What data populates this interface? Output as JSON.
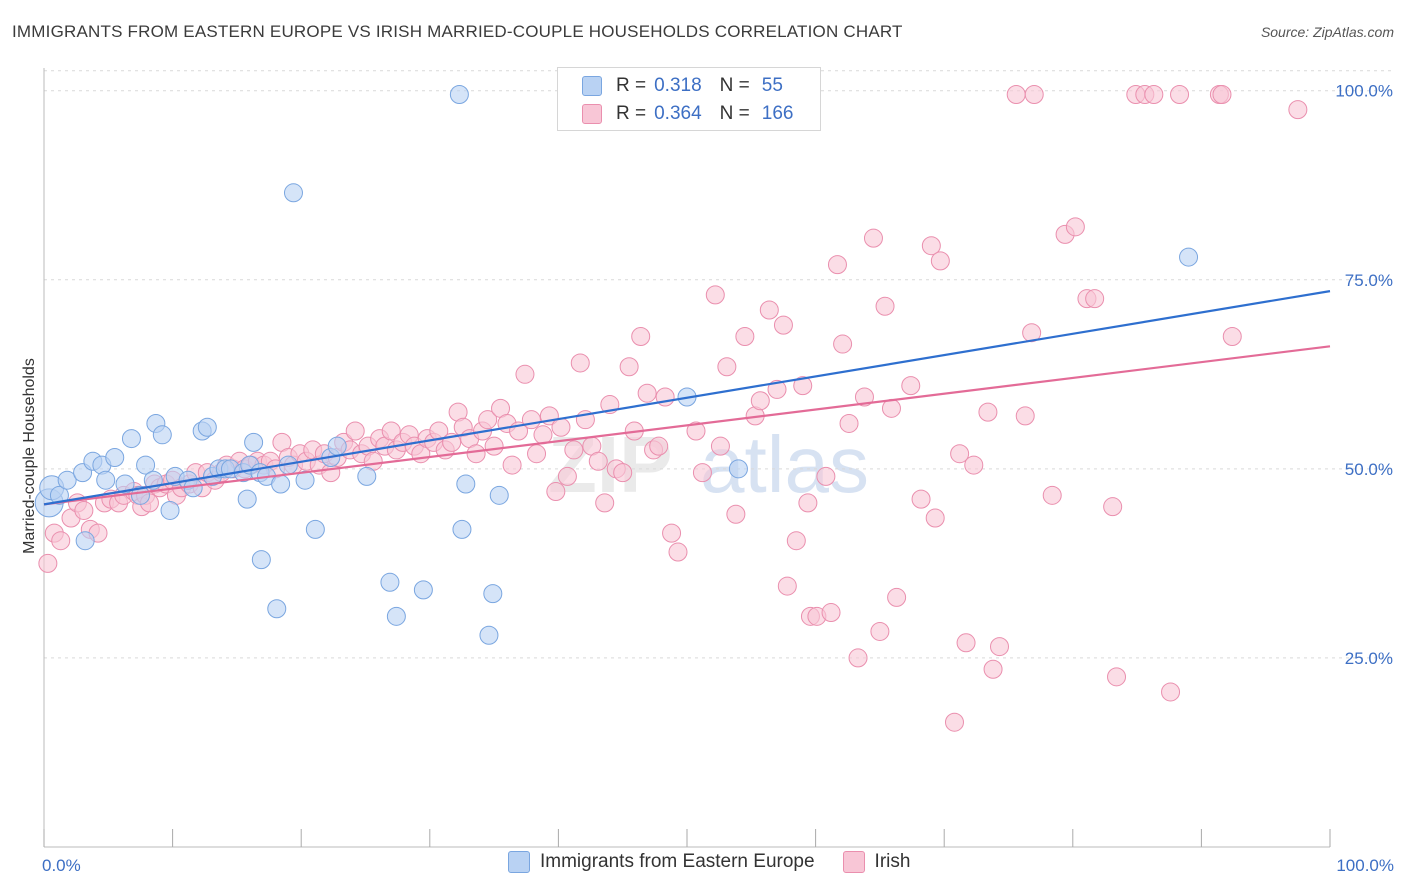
{
  "header": {
    "title": "IMMIGRANTS FROM EASTERN EUROPE VS IRISH MARRIED-COUPLE HOUSEHOLDS CORRELATION CHART",
    "source": "Source: ZipAtlas.com"
  },
  "watermark": {
    "zip": "ZIP",
    "atlas": "atlas"
  },
  "legend": {
    "rows": [
      {
        "r_label": "R =",
        "r_value": "0.318",
        "n_label": "N =",
        "n_value": "55"
      },
      {
        "r_label": "R =",
        "r_value": "0.364",
        "n_label": "N =",
        "n_value": "166"
      }
    ]
  },
  "bottom_legend": {
    "items": [
      "Immigrants from Eastern Europe",
      "Irish"
    ]
  },
  "colors": {
    "blue_fill": "#b9d2f3",
    "blue_stroke": "#7aa6e0",
    "blue_line": "#2e6fcf",
    "pink_fill": "#f8c6d6",
    "pink_stroke": "#ea8fae",
    "pink_line": "#e36b97",
    "tick_label": "#3d6fc4",
    "grid": "#d9d9d9"
  },
  "chart_data": {
    "type": "scatter",
    "title": "IMMIGRANTS FROM EASTERN EUROPE VS IRISH MARRIED-COUPLE HOUSEHOLDS CORRELATION CHART",
    "xlabel": "",
    "ylabel": "Married-couple Households",
    "xlim": [
      0,
      100
    ],
    "ylim": [
      0,
      103
    ],
    "x_tick_labels": [
      "0.0%",
      "100.0%"
    ],
    "y_ticks": [
      25,
      50,
      75,
      100
    ],
    "y_tick_labels": [
      "25.0%",
      "50.0%",
      "75.0%",
      "100.0%"
    ],
    "grid": true,
    "legend_position": "top-center",
    "series": [
      {
        "name": "Immigrants from Eastern Europe",
        "color": "blue",
        "trend": {
          "x": [
            0,
            100
          ],
          "y": [
            45.3,
            73.5
          ]
        },
        "points": [
          [
            0.4,
            45.5,
            14
          ],
          [
            0.6,
            47.5,
            12
          ],
          [
            1.2,
            46.5,
            9
          ],
          [
            1.8,
            48.5,
            9
          ],
          [
            3.0,
            49.5,
            9
          ],
          [
            3.2,
            40.5,
            9
          ],
          [
            3.8,
            51.0,
            9
          ],
          [
            4.5,
            50.5,
            9
          ],
          [
            4.8,
            48.5,
            9
          ],
          [
            5.5,
            51.5,
            9
          ],
          [
            6.3,
            48.0,
            9
          ],
          [
            6.8,
            54.0,
            9
          ],
          [
            7.5,
            46.5,
            9
          ],
          [
            7.9,
            50.5,
            9
          ],
          [
            8.5,
            48.5,
            9
          ],
          [
            8.7,
            56.0,
            9
          ],
          [
            9.2,
            54.5,
            9
          ],
          [
            9.8,
            44.5,
            9
          ],
          [
            10.2,
            49.0,
            9
          ],
          [
            11.2,
            48.5,
            9
          ],
          [
            11.6,
            47.5,
            9
          ],
          [
            12.3,
            55.0,
            9
          ],
          [
            12.7,
            55.5,
            9
          ],
          [
            13.1,
            49.0,
            9
          ],
          [
            13.6,
            50.0,
            9
          ],
          [
            14.1,
            50.0,
            9
          ],
          [
            14.5,
            50.0,
            9
          ],
          [
            15.5,
            49.5,
            9
          ],
          [
            15.8,
            46.0,
            9
          ],
          [
            16.0,
            50.5,
            9
          ],
          [
            16.3,
            53.5,
            9
          ],
          [
            16.8,
            49.5,
            9
          ],
          [
            16.9,
            38.0,
            9
          ],
          [
            17.3,
            49.0,
            9
          ],
          [
            18.1,
            31.5,
            9
          ],
          [
            18.4,
            48.0,
            9
          ],
          [
            19.0,
            50.5,
            9
          ],
          [
            19.4,
            86.5,
            9
          ],
          [
            20.3,
            48.5,
            9
          ],
          [
            21.1,
            42.0,
            9
          ],
          [
            22.3,
            51.5,
            9
          ],
          [
            22.8,
            53.0,
            9
          ],
          [
            25.1,
            49.0,
            9
          ],
          [
            26.9,
            35.0,
            9
          ],
          [
            27.4,
            30.5,
            9
          ],
          [
            29.5,
            34.0,
            9
          ],
          [
            32.3,
            99.5,
            9
          ],
          [
            32.5,
            42.0,
            9
          ],
          [
            32.8,
            48.0,
            9
          ],
          [
            34.6,
            28.0,
            9
          ],
          [
            34.9,
            33.5,
            9
          ],
          [
            35.4,
            46.5,
            9
          ],
          [
            50.0,
            59.5,
            9
          ],
          [
            54.0,
            50.0,
            9
          ],
          [
            89.0,
            78.0,
            9
          ]
        ]
      },
      {
        "name": "Irish",
        "color": "pink",
        "trend": {
          "x": [
            0,
            100
          ],
          "y": [
            45.3,
            66.2
          ]
        },
        "points": [
          [
            0.3,
            37.5,
            9
          ],
          [
            0.8,
            41.5,
            9
          ],
          [
            1.3,
            40.5,
            9
          ],
          [
            2.1,
            43.5,
            9
          ],
          [
            2.6,
            45.5,
            9
          ],
          [
            3.1,
            44.5,
            9
          ],
          [
            3.6,
            42.0,
            9
          ],
          [
            4.2,
            41.5,
            9
          ],
          [
            4.7,
            45.5,
            9
          ],
          [
            5.2,
            46.0,
            9
          ],
          [
            5.8,
            45.5,
            9
          ],
          [
            6.2,
            46.5,
            9
          ],
          [
            7.0,
            47.0,
            9
          ],
          [
            7.3,
            46.5,
            9
          ],
          [
            7.6,
            45.0,
            9
          ],
          [
            7.9,
            46.5,
            9
          ],
          [
            8.2,
            45.5,
            9
          ],
          [
            8.6,
            48.0,
            9
          ],
          [
            9.0,
            47.5,
            9
          ],
          [
            9.5,
            48.0,
            9
          ],
          [
            10.0,
            48.5,
            9
          ],
          [
            10.3,
            46.5,
            9
          ],
          [
            10.7,
            47.5,
            9
          ],
          [
            11.3,
            48.0,
            9
          ],
          [
            11.8,
            49.5,
            9
          ],
          [
            12.3,
            47.5,
            9
          ],
          [
            12.7,
            49.5,
            9
          ],
          [
            13.3,
            48.5,
            9
          ],
          [
            13.8,
            49.5,
            9
          ],
          [
            14.2,
            50.5,
            9
          ],
          [
            14.7,
            50.0,
            9
          ],
          [
            15.2,
            51.0,
            9
          ],
          [
            15.6,
            50.0,
            9
          ],
          [
            16.1,
            50.5,
            9
          ],
          [
            16.6,
            51.0,
            9
          ],
          [
            17.1,
            50.5,
            9
          ],
          [
            17.6,
            51.0,
            9
          ],
          [
            18.0,
            50.0,
            9
          ],
          [
            18.5,
            53.5,
            9
          ],
          [
            19.0,
            51.5,
            9
          ],
          [
            19.4,
            50.5,
            9
          ],
          [
            19.9,
            52.0,
            9
          ],
          [
            20.4,
            51.0,
            9
          ],
          [
            20.9,
            52.5,
            9
          ],
          [
            21.4,
            50.5,
            9
          ],
          [
            21.8,
            52.0,
            9
          ],
          [
            22.3,
            49.5,
            9
          ],
          [
            22.8,
            51.5,
            9
          ],
          [
            23.3,
            53.5,
            9
          ],
          [
            23.8,
            52.5,
            9
          ],
          [
            24.2,
            55.0,
            9
          ],
          [
            24.7,
            52.0,
            9
          ],
          [
            25.2,
            53.0,
            9
          ],
          [
            25.6,
            51.0,
            9
          ],
          [
            26.1,
            54.0,
            9
          ],
          [
            26.5,
            53.0,
            9
          ],
          [
            27.0,
            55.0,
            9
          ],
          [
            27.4,
            52.5,
            9
          ],
          [
            27.9,
            53.5,
            9
          ],
          [
            28.4,
            54.5,
            9
          ],
          [
            28.8,
            53.0,
            9
          ],
          [
            29.3,
            52.0,
            9
          ],
          [
            29.8,
            54.0,
            9
          ],
          [
            30.3,
            53.5,
            9
          ],
          [
            30.7,
            55.0,
            9
          ],
          [
            31.2,
            52.5,
            9
          ],
          [
            31.7,
            53.5,
            9
          ],
          [
            32.2,
            57.5,
            9
          ],
          [
            32.6,
            55.5,
            9
          ],
          [
            33.1,
            54.0,
            9
          ],
          [
            33.6,
            52.0,
            9
          ],
          [
            34.1,
            55.0,
            9
          ],
          [
            34.5,
            56.5,
            9
          ],
          [
            35.0,
            53.0,
            9
          ],
          [
            35.5,
            58.0,
            9
          ],
          [
            36.0,
            56.0,
            9
          ],
          [
            36.4,
            50.5,
            9
          ],
          [
            36.9,
            55.0,
            9
          ],
          [
            37.4,
            62.5,
            9
          ],
          [
            37.9,
            56.5,
            9
          ],
          [
            38.3,
            52.0,
            9
          ],
          [
            38.8,
            54.5,
            9
          ],
          [
            39.3,
            57.0,
            9
          ],
          [
            39.8,
            47.0,
            9
          ],
          [
            40.2,
            55.5,
            9
          ],
          [
            40.7,
            49.0,
            9
          ],
          [
            41.2,
            52.5,
            9
          ],
          [
            41.7,
            64.0,
            9
          ],
          [
            42.1,
            56.5,
            9
          ],
          [
            42.6,
            53.0,
            9
          ],
          [
            43.1,
            51.0,
            9
          ],
          [
            43.6,
            45.5,
            9
          ],
          [
            44.0,
            58.5,
            9
          ],
          [
            44.5,
            50.0,
            9
          ],
          [
            45.0,
            49.5,
            9
          ],
          [
            45.5,
            63.5,
            9
          ],
          [
            45.9,
            55.0,
            9
          ],
          [
            46.4,
            67.5,
            9
          ],
          [
            46.9,
            60.0,
            9
          ],
          [
            47.4,
            52.5,
            9
          ],
          [
            47.8,
            53.0,
            9
          ],
          [
            48.3,
            59.5,
            9
          ],
          [
            48.8,
            41.5,
            9
          ],
          [
            49.3,
            39.0,
            9
          ],
          [
            50.7,
            55.0,
            9
          ],
          [
            51.2,
            49.5,
            9
          ],
          [
            52.2,
            73.0,
            9
          ],
          [
            52.6,
            53.0,
            9
          ],
          [
            53.1,
            63.5,
            9
          ],
          [
            53.8,
            44.0,
            9
          ],
          [
            54.5,
            67.5,
            9
          ],
          [
            55.3,
            57.0,
            9
          ],
          [
            55.7,
            59.0,
            9
          ],
          [
            56.4,
            71.0,
            9
          ],
          [
            57.0,
            60.5,
            9
          ],
          [
            57.5,
            69.0,
            9
          ],
          [
            57.8,
            34.5,
            9
          ],
          [
            58.5,
            40.5,
            9
          ],
          [
            59.0,
            61.0,
            9
          ],
          [
            59.4,
            45.5,
            9
          ],
          [
            59.6,
            30.5,
            9
          ],
          [
            60.1,
            30.5,
            9
          ],
          [
            60.8,
            49.0,
            9
          ],
          [
            61.2,
            31.0,
            9
          ],
          [
            61.7,
            77.0,
            9
          ],
          [
            62.1,
            66.5,
            9
          ],
          [
            62.6,
            56.0,
            9
          ],
          [
            63.3,
            25.0,
            9
          ],
          [
            63.8,
            59.5,
            9
          ],
          [
            64.5,
            80.5,
            9
          ],
          [
            65.0,
            28.5,
            9
          ],
          [
            65.4,
            71.5,
            9
          ],
          [
            65.9,
            58.0,
            9
          ],
          [
            66.3,
            33.0,
            9
          ],
          [
            67.4,
            61.0,
            9
          ],
          [
            68.2,
            46.0,
            9
          ],
          [
            69.0,
            79.5,
            9
          ],
          [
            69.3,
            43.5,
            9
          ],
          [
            69.7,
            77.5,
            9
          ],
          [
            70.8,
            16.5,
            9
          ],
          [
            71.2,
            52.0,
            9
          ],
          [
            71.7,
            27.0,
            9
          ],
          [
            72.3,
            50.5,
            9
          ],
          [
            73.4,
            57.5,
            9
          ],
          [
            73.8,
            23.5,
            9
          ],
          [
            74.3,
            26.5,
            9
          ],
          [
            75.6,
            99.5,
            9
          ],
          [
            76.3,
            57.0,
            9
          ],
          [
            76.8,
            68.0,
            9
          ],
          [
            77.0,
            99.5,
            9
          ],
          [
            78.4,
            46.5,
            9
          ],
          [
            79.4,
            81.0,
            9
          ],
          [
            80.2,
            82.0,
            9
          ],
          [
            81.1,
            72.5,
            9
          ],
          [
            81.7,
            72.5,
            9
          ],
          [
            83.1,
            45.0,
            9
          ],
          [
            83.4,
            22.5,
            9
          ],
          [
            84.9,
            99.5,
            9
          ],
          [
            85.6,
            99.5,
            9
          ],
          [
            86.3,
            99.5,
            9
          ],
          [
            87.6,
            20.5,
            9
          ],
          [
            88.3,
            99.5,
            9
          ],
          [
            91.4,
            99.5,
            9
          ],
          [
            91.6,
            99.5,
            9
          ],
          [
            92.4,
            67.5,
            9
          ],
          [
            97.5,
            97.5,
            9
          ]
        ]
      }
    ]
  }
}
